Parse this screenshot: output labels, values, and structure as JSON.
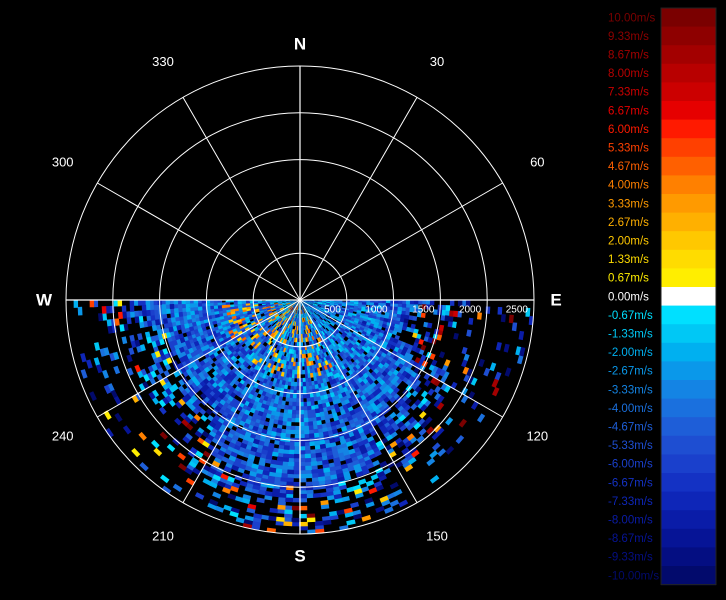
{
  "chart_data": {
    "type": "heatmap",
    "subtype": "polar-ppi",
    "title": "",
    "coverage_azimuth_deg": [
      90,
      270
    ],
    "range_max": 2500,
    "grid": true,
    "compass_labels": [
      "N",
      "E",
      "S",
      "W"
    ],
    "angle_labels": [
      "30",
      "60",
      "120",
      "150",
      "210",
      "240",
      "300",
      "330"
    ],
    "range_labels": [
      "500",
      "1000",
      "1500",
      "2000",
      "2500"
    ],
    "colorbar": {
      "placement": "right",
      "unit": "m/s",
      "labels": [
        "10.00m/s",
        "9.33m/s",
        "8.67m/s",
        "8.00m/s",
        "7.33m/s",
        "6.67m/s",
        "6.00m/s",
        "5.33m/s",
        "4.67m/s",
        "4.00m/s",
        "3.33m/s",
        "2.67m/s",
        "2.00m/s",
        "1.33m/s",
        "0.67m/s",
        "0.00m/s",
        "-0.67m/s",
        "-1.33m/s",
        "-2.00m/s",
        "-2.67m/s",
        "-3.33m/s",
        "-4.00m/s",
        "-4.67m/s",
        "-5.33m/s",
        "-6.00m/s",
        "-6.67m/s",
        "-7.33m/s",
        "-8.00m/s",
        "-8.67m/s",
        "-9.33m/s",
        "-10.00m/s"
      ],
      "colors": [
        "#7a0000",
        "#8e0000",
        "#a30000",
        "#b80000",
        "#cc0000",
        "#e60000",
        "#ff1a00",
        "#ff4000",
        "#ff6000",
        "#ff8000",
        "#ff9a00",
        "#ffb000",
        "#ffc800",
        "#ffdc00",
        "#ffee00",
        "#ffffff",
        "#00e0ff",
        "#00c8f5",
        "#00b0f0",
        "#0a98ea",
        "#1484e4",
        "#1a70de",
        "#1e5ed8",
        "#1e4ed2",
        "#1a40cc",
        "#1432c4",
        "#0e26b8",
        "#0a1ca8",
        "#061496",
        "#040e82",
        "#020a6c"
      ]
    }
  }
}
